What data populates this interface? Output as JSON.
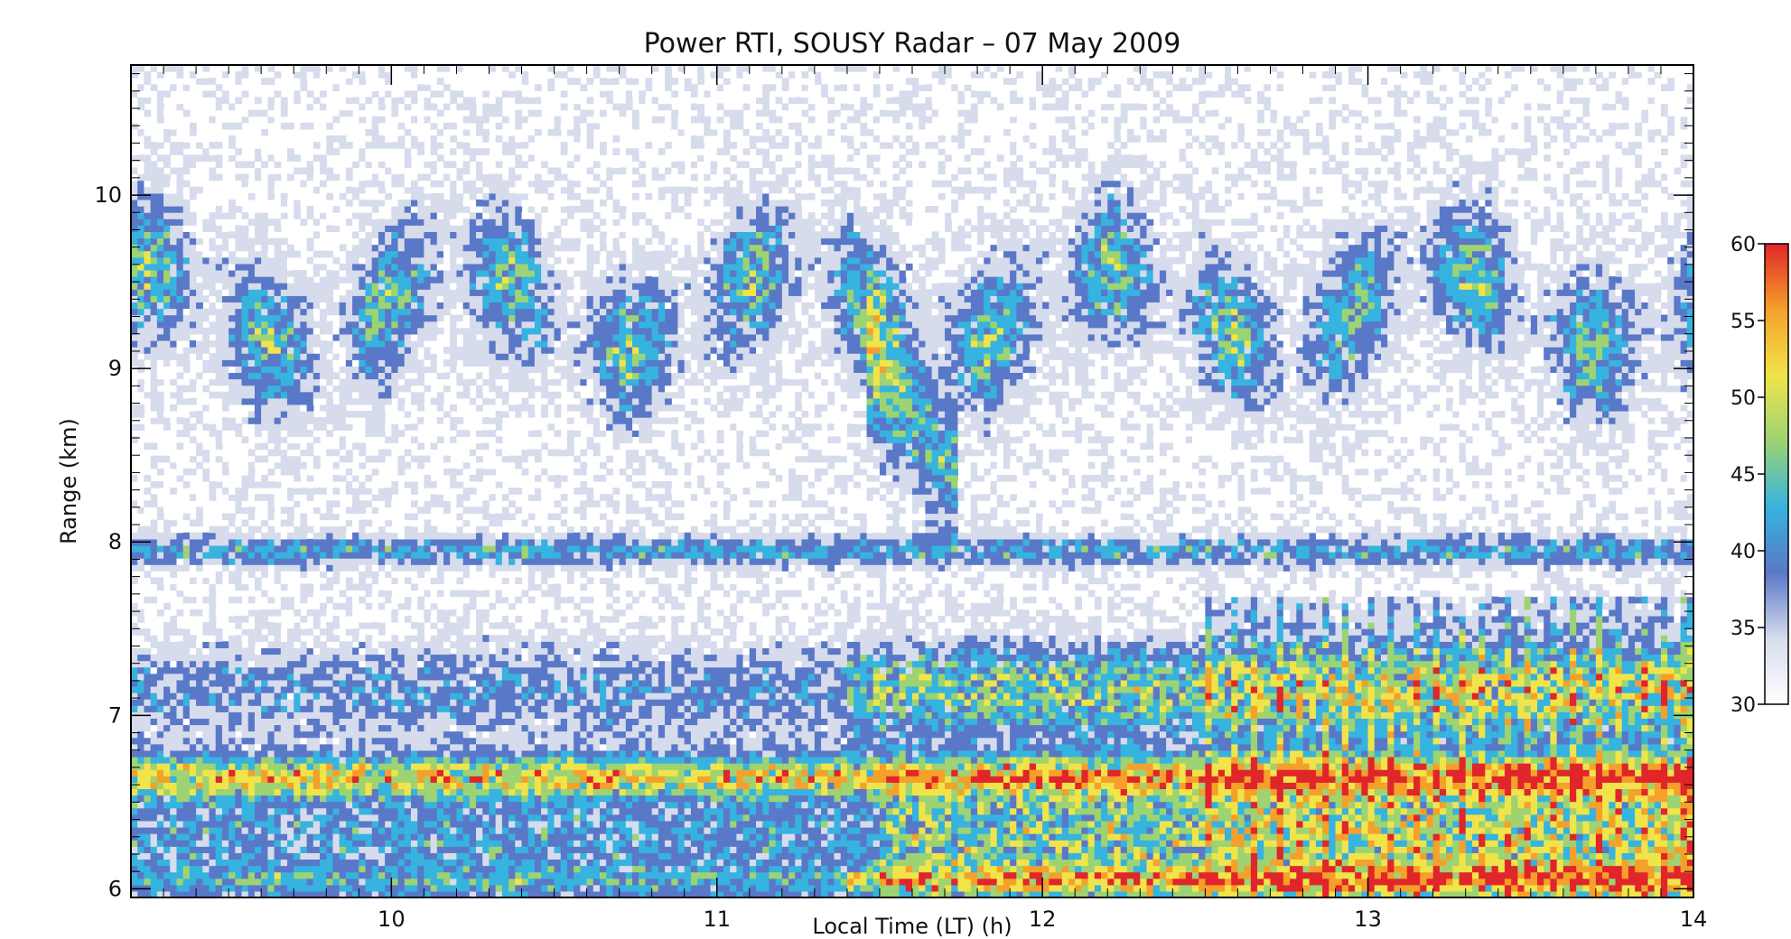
{
  "chart_data": {
    "type": "heatmap",
    "title": "Power RTI, SOUSY Radar – 07 May 2009",
    "xlabel": "Local Time (LT) (h)",
    "ylabel": "Range (km)",
    "xlim": [
      9.2,
      14.0
    ],
    "ylim": [
      5.95,
      10.75
    ],
    "x_ticks": [
      "10",
      "11",
      "12",
      "13",
      "14"
    ],
    "y_ticks": [
      "6",
      "7",
      "8",
      "9",
      "10"
    ],
    "colorbar": {
      "min": 30,
      "max": 60,
      "ticks": [
        "30",
        "35",
        "40",
        "45",
        "50",
        "55",
        "60"
      ],
      "colors": [
        "#ffffff",
        "#d7dcec",
        "#5a78c8",
        "#36b3df",
        "#9dd373",
        "#f0e44a",
        "#f5a02b",
        "#e0262a"
      ]
    },
    "layers": [
      {
        "name": "upper-tropospheric-echo",
        "y_min": 8.5,
        "y_max": 10.0,
        "level": "35-45"
      },
      {
        "name": "thin-layer-8km",
        "y": 7.95,
        "level": "33-40"
      },
      {
        "name": "layer-7km",
        "y_min": 6.8,
        "y_max": 7.7,
        "level": "35-48"
      },
      {
        "name": "strong-layer-6.6km",
        "y": 6.65,
        "level": "40-55"
      },
      {
        "name": "lower-echo-region",
        "y_min": 6.0,
        "y_max": 6.6,
        "level": "35-55"
      }
    ],
    "grid": false,
    "legend": "colorbar-right"
  }
}
